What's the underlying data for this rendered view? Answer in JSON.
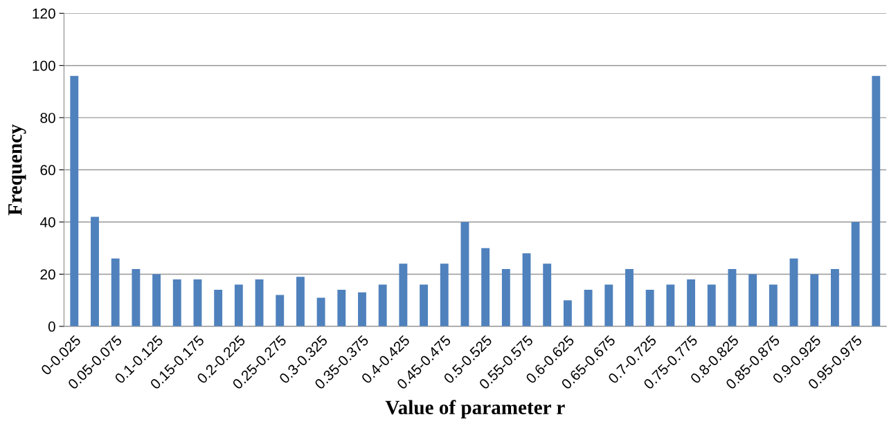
{
  "chart_data": {
    "type": "bar",
    "xlabel": "Value of parameter r",
    "ylabel": "Frequency",
    "categories": [
      "0-0.025",
      null,
      "0.05-0.075",
      null,
      "0.1-0.125",
      null,
      "0.15-0.175",
      null,
      "0.2-0.225",
      null,
      "0.25-0.275",
      null,
      "0.3-0.325",
      null,
      "0.35-0.375",
      null,
      "0.4-0.425",
      null,
      "0.45-0.475",
      null,
      "0.5-0.525",
      null,
      "0.55-0.575",
      null,
      "0.6-0.625",
      null,
      "0.65-0.675",
      null,
      "0.7-0.725",
      null,
      "0.75-0.775",
      null,
      "0.8-0.825",
      null,
      "0.85-0.875",
      null,
      "0.9-0.925",
      null,
      "0.95-0.975",
      null
    ],
    "values": [
      96,
      42,
      26,
      22,
      20,
      18,
      18,
      14,
      16,
      18,
      12,
      19,
      11,
      14,
      13,
      16,
      24,
      16,
      24,
      40,
      30,
      22,
      28,
      24,
      10,
      14,
      16,
      22,
      14,
      16,
      18,
      16,
      22,
      20,
      16,
      26,
      20,
      22,
      40,
      96
    ],
    "color": "#4f81bd",
    "ylim": [
      0,
      120
    ],
    "yticks": [
      0,
      20,
      40,
      60,
      80,
      100,
      120
    ],
    "grid": "y"
  }
}
